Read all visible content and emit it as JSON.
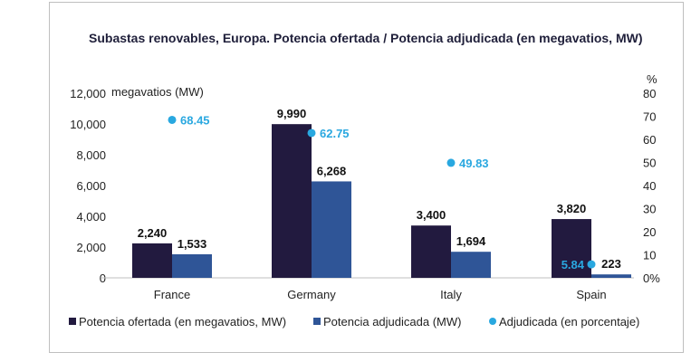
{
  "chart_data": {
    "type": "bar",
    "title": "Subastas renovables, Europa. Potencia ofertada / Potencia adjudicada (en megavatios, MW)",
    "left_axis_unit": "megavatios (MW)",
    "right_axis_unit": "%",
    "categories": [
      "France",
      "Germany",
      "Italy",
      "Spain"
    ],
    "ylim": [
      0,
      12000
    ],
    "y_ticks": [
      "0",
      "2,000",
      "4,000",
      "6,000",
      "8,000",
      "10,000",
      "12,000"
    ],
    "y2lim": [
      0,
      80
    ],
    "y2_ticks": [
      "0%",
      "10",
      "20",
      "30",
      "40",
      "50",
      "60",
      "70",
      "80"
    ],
    "series": [
      {
        "name": "Potencia ofertada (en megavatios, MW)",
        "kind": "bar",
        "axis": "left",
        "color": "#221a3f",
        "values": [
          2240,
          9990,
          3400,
          3820
        ],
        "labels": [
          "2,240",
          "9,990",
          "3,400",
          "3,820"
        ]
      },
      {
        "name": "Potencia adjudicada (MW)",
        "kind": "bar",
        "axis": "left",
        "color": "#2f5597",
        "values": [
          1533,
          6268,
          1694,
          223
        ],
        "labels": [
          "1,533",
          "6,268",
          "1,694",
          "223"
        ]
      },
      {
        "name": "Adjudicada (en porcentaje)",
        "kind": "scatter",
        "axis": "right",
        "color": "#29a8e0",
        "values": [
          68.45,
          62.75,
          49.83,
          5.84
        ],
        "labels": [
          "68.45",
          "62.75",
          "49.83",
          "5.84"
        ]
      }
    ],
    "grid": false,
    "legend_position": "bottom"
  }
}
